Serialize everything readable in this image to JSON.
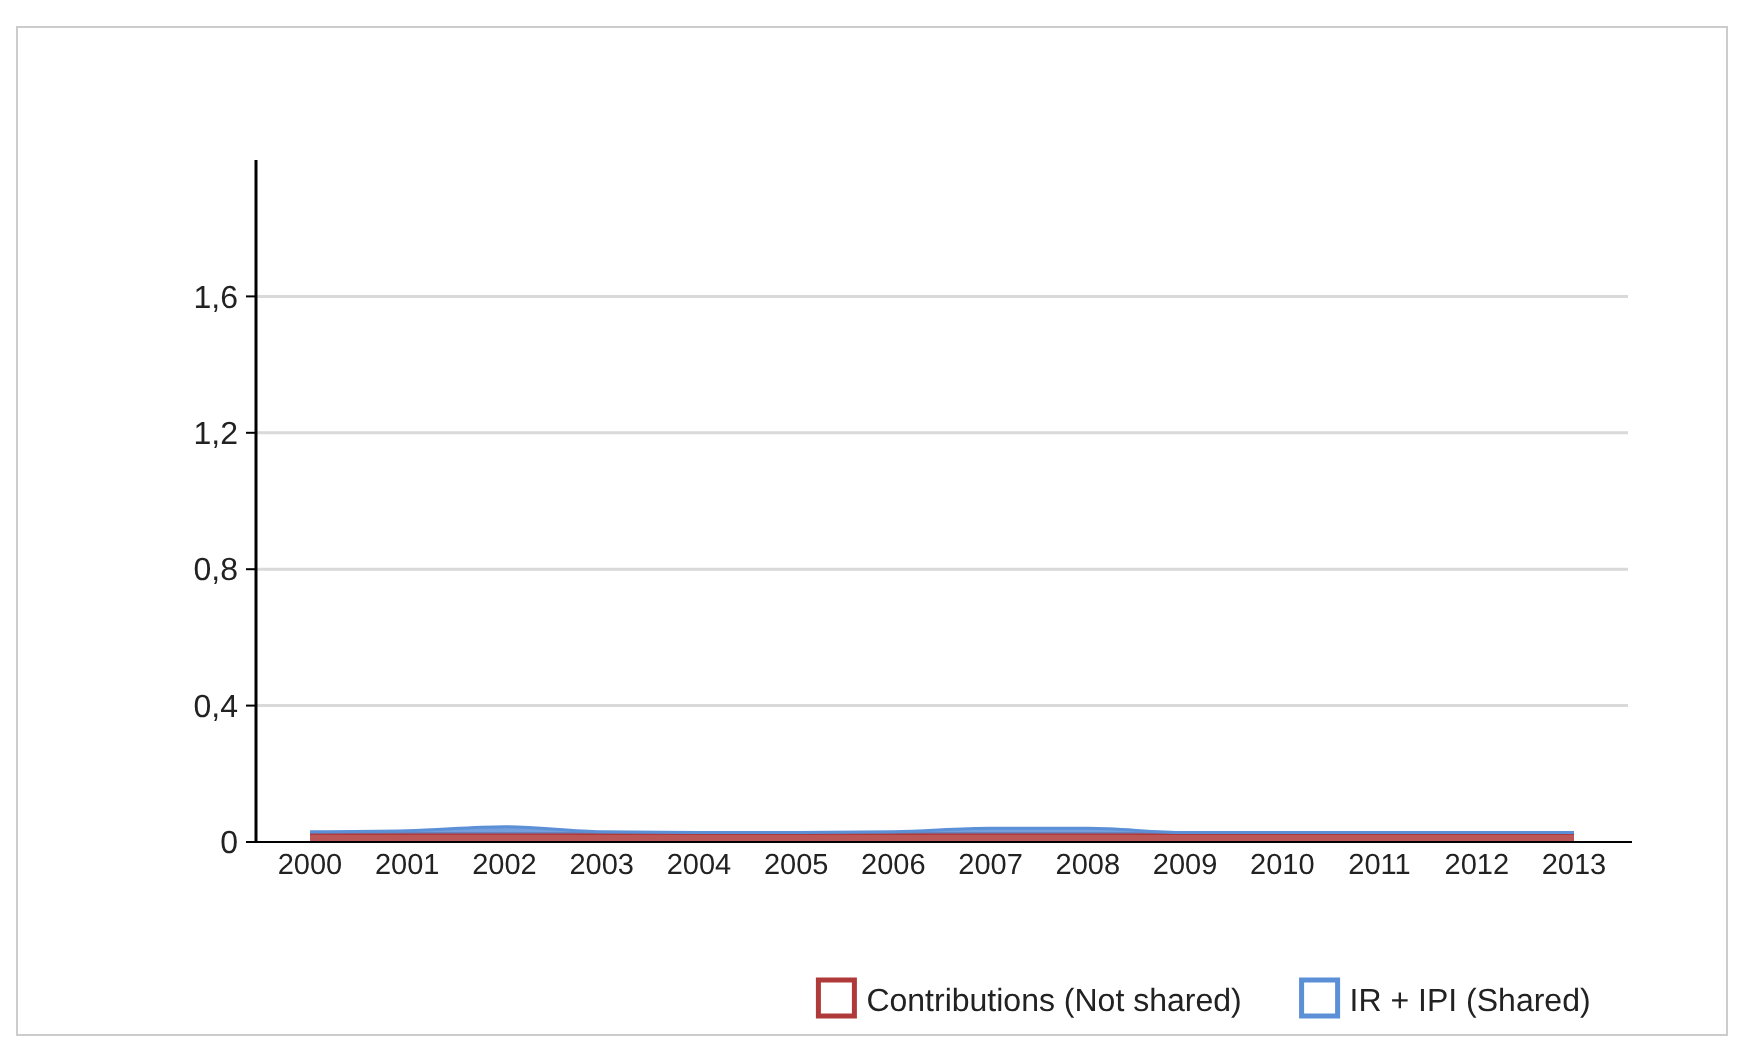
{
  "chart_data": {
    "type": "area",
    "stacked": true,
    "categories": [
      "2000",
      "2001",
      "2002",
      "2003",
      "2004",
      "2005",
      "2006",
      "2007",
      "2008",
      "2009",
      "2010",
      "2011",
      "2012",
      "2013"
    ],
    "series": [
      {
        "name": "Contributions (Not shared)",
        "color": "#b03a3a",
        "values": [
          0.025,
          0.025,
          0.025,
          0.025,
          0.025,
          0.025,
          0.025,
          0.025,
          0.025,
          0.025,
          0.025,
          0.025,
          0.025,
          0.025
        ]
      },
      {
        "name": "IR + IPI (Shared)",
        "color": "#5b8fd6",
        "values": [
          0.005,
          0.008,
          0.02,
          0.005,
          0.003,
          0.003,
          0.005,
          0.015,
          0.015,
          0.003,
          0.003,
          0.003,
          0.003,
          0.003
        ]
      }
    ],
    "ylim": [
      0,
      2
    ],
    "yticks": [
      0,
      {
        "value": 0.4,
        "label": "0,4"
      },
      {
        "value": 0.8,
        "label": "0,8"
      },
      {
        "value": 1.2,
        "label": "1,2"
      },
      {
        "value": 1.6,
        "label": "1,6"
      }
    ],
    "grid": "y",
    "legend": "bottom"
  }
}
